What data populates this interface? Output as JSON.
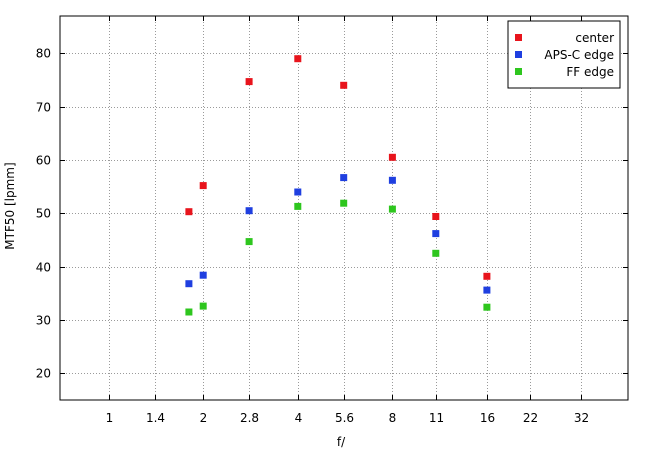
{
  "chart_data": {
    "type": "scatter",
    "title": "",
    "xlabel": "f/",
    "ylabel": "MTF50 [lpmm]",
    "x_scale": "log",
    "xlim": [
      0.7,
      45
    ],
    "ylim": [
      15,
      87
    ],
    "x_ticks": [
      1,
      1.4,
      2,
      2.8,
      4,
      5.6,
      8,
      11,
      16,
      22,
      32
    ],
    "x_tick_labels": [
      "1",
      "1.4",
      "2",
      "2.8",
      "4",
      "5.6",
      "8",
      "11",
      "16",
      "22",
      "32"
    ],
    "y_ticks": [
      20,
      30,
      40,
      50,
      60,
      70,
      80
    ],
    "y_tick_labels": [
      "20",
      "30",
      "40",
      "50",
      "60",
      "70",
      "80"
    ],
    "grid": true,
    "legend_position": "top-right",
    "series": [
      {
        "name": "center",
        "color": "#e8141c",
        "points": [
          {
            "x": 1.8,
            "y": 50.3
          },
          {
            "x": 2,
            "y": 55.2
          },
          {
            "x": 2.8,
            "y": 74.7
          },
          {
            "x": 4,
            "y": 79
          },
          {
            "x": 5.6,
            "y": 74
          },
          {
            "x": 8,
            "y": 60.5
          },
          {
            "x": 11,
            "y": 49.4
          },
          {
            "x": 16,
            "y": 38.2
          }
        ]
      },
      {
        "name": "APS-C edge",
        "color": "#1f3fe0",
        "points": [
          {
            "x": 1.8,
            "y": 36.8
          },
          {
            "x": 2,
            "y": 38.4
          },
          {
            "x": 2.8,
            "y": 50.5
          },
          {
            "x": 4,
            "y": 54
          },
          {
            "x": 5.6,
            "y": 56.7
          },
          {
            "x": 8,
            "y": 56.2
          },
          {
            "x": 11,
            "y": 46.2
          },
          {
            "x": 16,
            "y": 35.6
          }
        ]
      },
      {
        "name": "FF edge",
        "color": "#2ec61e",
        "points": [
          {
            "x": 1.8,
            "y": 31.5
          },
          {
            "x": 2,
            "y": 32.6
          },
          {
            "x": 2.8,
            "y": 44.7
          },
          {
            "x": 4,
            "y": 51.3
          },
          {
            "x": 5.6,
            "y": 51.9
          },
          {
            "x": 8,
            "y": 50.8
          },
          {
            "x": 11,
            "y": 42.5
          },
          {
            "x": 16,
            "y": 32.4
          }
        ]
      }
    ]
  }
}
